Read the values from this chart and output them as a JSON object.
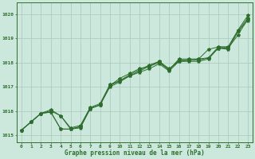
{
  "xlabel": "Graphe pression niveau de la mer (hPa)",
  "x_ticks": [
    0,
    1,
    2,
    3,
    4,
    5,
    6,
    7,
    8,
    9,
    10,
    11,
    12,
    13,
    14,
    15,
    16,
    17,
    18,
    19,
    20,
    21,
    22,
    23
  ],
  "ylim": [
    1014.7,
    1020.5
  ],
  "xlim": [
    -0.5,
    23.5
  ],
  "yticks": [
    1015,
    1016,
    1017,
    1018,
    1019,
    1020
  ],
  "background_color": "#cce8dc",
  "grid_color": "#a8c8b8",
  "line_color": "#2d6e2d",
  "line1": [
    1015.2,
    1015.55,
    1015.9,
    1015.95,
    1015.25,
    1015.25,
    1015.3,
    1016.1,
    1016.25,
    1017.0,
    1017.2,
    1017.45,
    1017.6,
    1017.75,
    1017.95,
    1017.65,
    1018.05,
    1018.05,
    1018.05,
    1018.15,
    1018.6,
    1018.6,
    1019.15,
    1019.8
  ],
  "line2": [
    1015.2,
    1015.55,
    1015.9,
    1015.95,
    1015.25,
    1015.25,
    1015.35,
    1016.1,
    1016.25,
    1017.05,
    1017.35,
    1017.55,
    1017.75,
    1017.85,
    1018.05,
    1017.75,
    1018.05,
    1018.1,
    1018.15,
    1018.55,
    1018.65,
    1018.65,
    1019.3,
    1019.85
  ],
  "line3": [
    1015.2,
    1015.55,
    1015.9,
    1016.0,
    1015.8,
    1015.25,
    1015.35,
    1016.1,
    1016.25,
    1017.05,
    1017.25,
    1017.45,
    1017.65,
    1017.85,
    1018.0,
    1017.7,
    1018.1,
    1018.1,
    1018.1,
    1018.2,
    1018.6,
    1018.55,
    1019.3,
    1019.75
  ],
  "line4": [
    1015.2,
    1015.55,
    1015.9,
    1016.05,
    1015.8,
    1015.3,
    1015.4,
    1016.15,
    1016.3,
    1017.1,
    1017.25,
    1017.5,
    1017.7,
    1017.9,
    1018.05,
    1017.7,
    1018.15,
    1018.15,
    1018.15,
    1018.2,
    1018.65,
    1018.65,
    1019.35,
    1019.95
  ],
  "marker": "*",
  "markersize": 3,
  "linewidth": 0.7
}
